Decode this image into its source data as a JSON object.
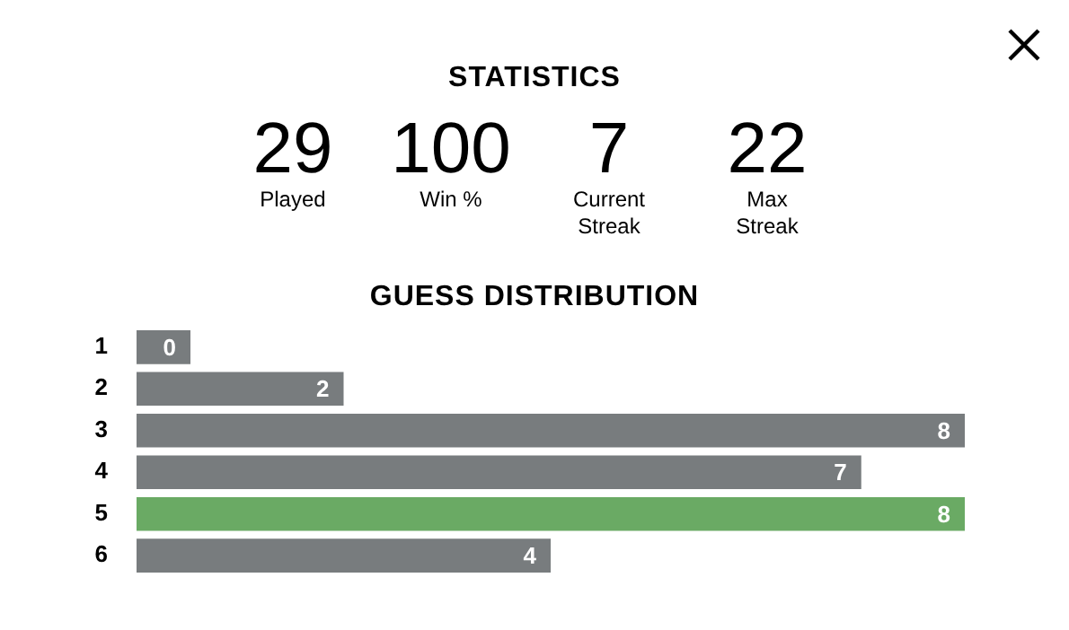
{
  "chart_data": [
    {
      "type": "other",
      "title": "STATISTICS",
      "annotations": [
        "29",
        "Played",
        "100",
        "Win %",
        "7",
        "Current Streak",
        "22",
        "Max Streak"
      ]
    },
    {
      "type": "bar",
      "title": "GUESS DISTRIBUTION",
      "orientation": "horizontal",
      "categories": [
        "1",
        "2",
        "3",
        "4",
        "5",
        "6"
      ],
      "values": [
        0,
        2,
        8,
        7,
        8,
        4
      ],
      "colors": [
        "#787c7e",
        "#787c7e",
        "#787c7e",
        "#787c7e",
        "#6aaa64",
        "#787c7e"
      ],
      "xlim": [
        0,
        8
      ],
      "tick_labels": "y",
      "data_labels": true
    }
  ]
}
